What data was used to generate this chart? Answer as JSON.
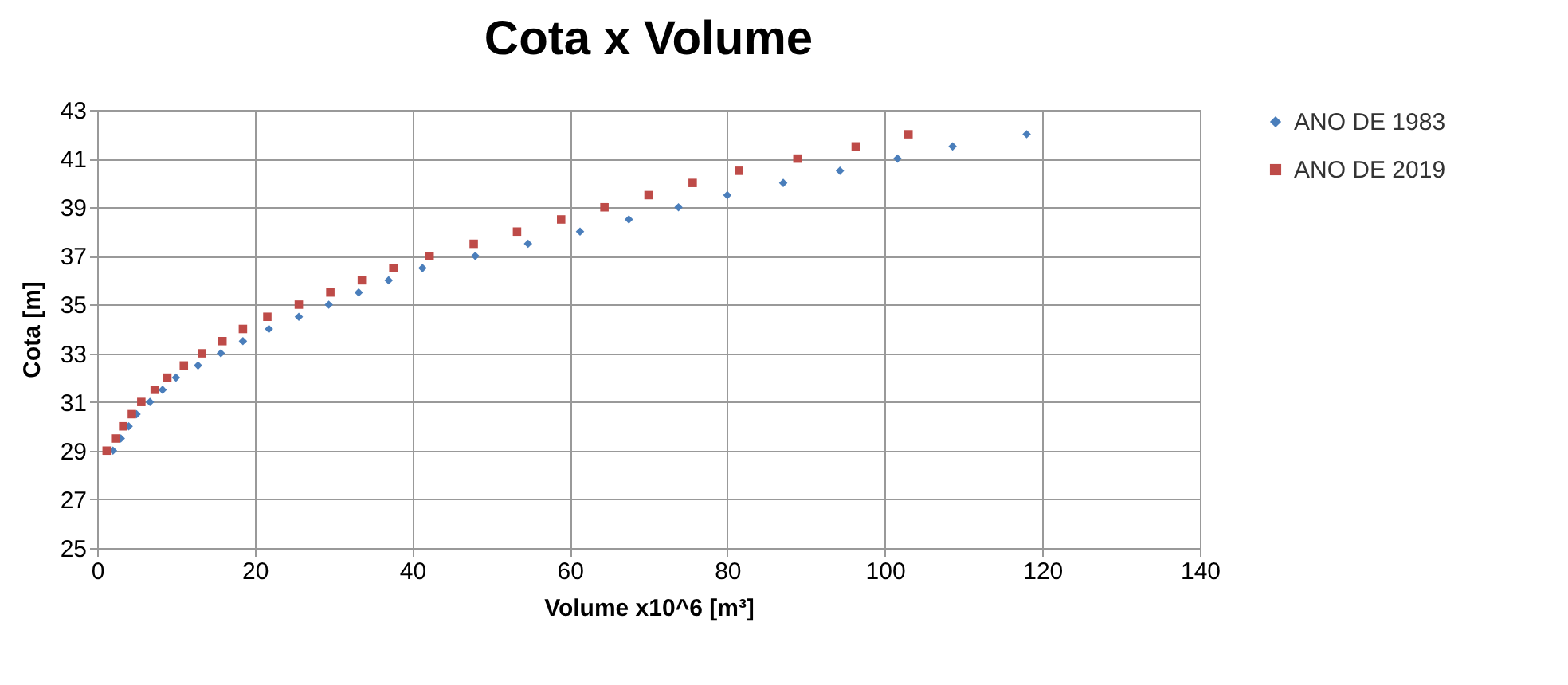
{
  "chart_data": {
    "type": "scatter",
    "title": "Cota x Volume",
    "xlabel": "Volume x10^6  [m³]",
    "ylabel": "Cota [m]",
    "xlim": [
      0,
      140
    ],
    "xticks": [
      0,
      20,
      40,
      60,
      80,
      100,
      120,
      140
    ],
    "ylim": [
      25,
      43
    ],
    "yticks": [
      25,
      27,
      29,
      31,
      33,
      35,
      37,
      39,
      41,
      43
    ],
    "grid": true,
    "legend": "right",
    "series": [
      {
        "name": "ANO DE 1983",
        "color": "#4a7ebb",
        "marker": "diamond",
        "x": [
          2,
          3,
          4,
          5,
          6.7,
          8.3,
          10,
          12.8,
          15.7,
          18.5,
          21.8,
          25.6,
          29.4,
          33.2,
          37,
          41.3,
          48,
          54.7,
          61.3,
          67.5,
          73.8,
          80,
          87.1,
          94.3,
          101.6,
          108.6,
          118
        ],
        "values": [
          29,
          29.5,
          30,
          30.5,
          31,
          31.5,
          32,
          32.5,
          33,
          33.5,
          34,
          34.5,
          35,
          35.5,
          36,
          36.5,
          37,
          37.5,
          38,
          38.5,
          39,
          39.5,
          40,
          40.5,
          41,
          41.5,
          42
        ]
      },
      {
        "name": "ANO DE 2019",
        "color": "#be4b48",
        "marker": "square",
        "x": [
          1.2,
          2.3,
          3.3,
          4.4,
          5.6,
          7.3,
          8.9,
          11,
          13.3,
          15.9,
          18.5,
          21.6,
          25.6,
          29.6,
          33.6,
          37.6,
          42.2,
          47.8,
          53.3,
          58.9,
          64.4,
          70,
          75.6,
          81.5,
          88.9,
          96.3,
          103
        ],
        "values": [
          29,
          29.5,
          30,
          30.5,
          31,
          31.5,
          32,
          32.5,
          33,
          33.5,
          34,
          34.5,
          35,
          35.5,
          36,
          36.5,
          37,
          37.5,
          38,
          38.5,
          39,
          39.5,
          40,
          40.5,
          41,
          41.5,
          42
        ]
      }
    ]
  }
}
